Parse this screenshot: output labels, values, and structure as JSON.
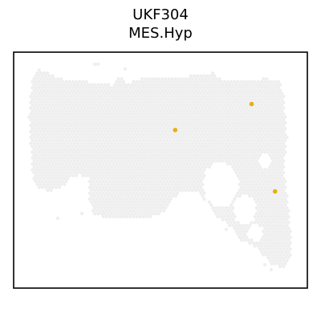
{
  "chart_data": {
    "type": "scatter",
    "title": "UKF304",
    "subtitle": "MES.Hyp",
    "xlabel": "",
    "ylabel": "",
    "axes_visible": false,
    "grid": false,
    "background_spot_color": "#eeeeee",
    "highlight_color": "#e6b012",
    "highlighted_spots": [
      {
        "x": 0.55,
        "y": 0.67
      },
      {
        "x": 0.81,
        "y": 0.78
      },
      {
        "x": 0.89,
        "y": 0.41
      }
    ]
  }
}
